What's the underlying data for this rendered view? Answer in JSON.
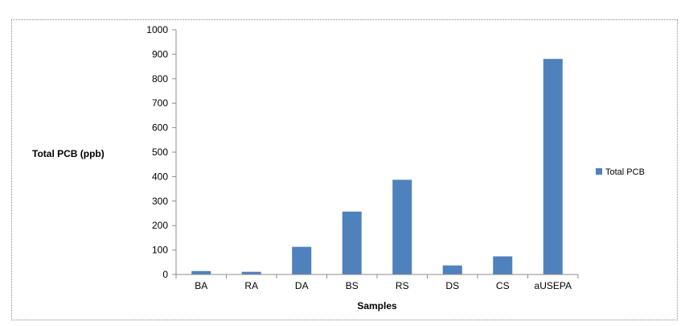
{
  "chart_data": {
    "type": "bar",
    "categories": [
      "BA",
      "RA",
      "DA",
      "BS",
      "RS",
      "DS",
      "CS",
      "aUSEPA"
    ],
    "series": [
      {
        "name": "Total PCB",
        "values": [
          14,
          11,
          113,
          257,
          387,
          37,
          74,
          881
        ],
        "color": "#4f81bd"
      }
    ],
    "xlabel": "Samples",
    "ylabel": "Total  PCB (ppb)",
    "ylim": [
      0,
      1000
    ],
    "yticks": [
      0,
      100,
      200,
      300,
      400,
      500,
      600,
      700,
      800,
      900,
      1000
    ],
    "grid": false,
    "legend": "right"
  }
}
